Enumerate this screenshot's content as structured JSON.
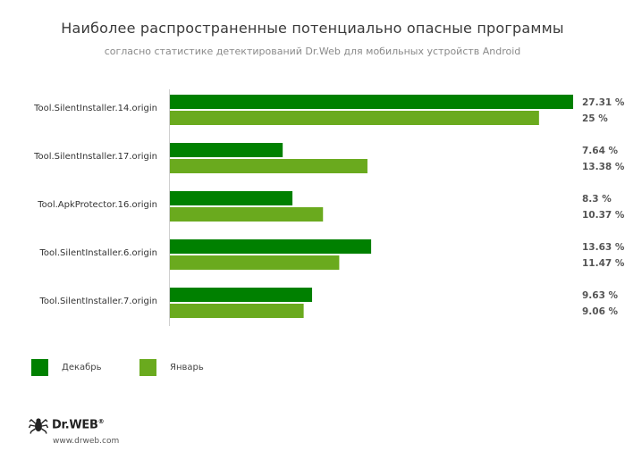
{
  "chart_data": {
    "type": "bar",
    "orientation": "horizontal",
    "title": "Наиболее распространенные потенциально опасные программы",
    "subtitle": "согласно статистике детектирований Dr.Web для мобильных устройств Android",
    "categories": [
      "Tool.SilentInstaller.14.origin",
      "Tool.SilentInstaller.17.origin",
      "Tool.ApkProtector.16.origin",
      "Tool.SilentInstaller.6.origin",
      "Tool.SilentInstaller.7.origin"
    ],
    "series": [
      {
        "name": "Декабрь",
        "color": "#008000",
        "values": [
          27.31,
          7.64,
          8.3,
          13.63,
          9.63
        ],
        "labels": [
          "27.31 %",
          "7.64 %",
          "8.3 %",
          "13.63 %",
          "9.63 %"
        ]
      },
      {
        "name": "Январь",
        "color": "#6aaa1e",
        "values": [
          25,
          13.38,
          10.37,
          11.47,
          9.06
        ],
        "labels": [
          "25 %",
          "13.38 %",
          "10.37 %",
          "11.47 %",
          "9.06 %"
        ]
      }
    ],
    "xlim": [
      0,
      27.31
    ],
    "grid": false,
    "legend": "bottom-left"
  },
  "footer": {
    "logo_text": "Dr.WEB",
    "logo_mark": "®",
    "website": "www.drweb.com"
  },
  "icons": {
    "logo": "spider-logo-icon"
  }
}
